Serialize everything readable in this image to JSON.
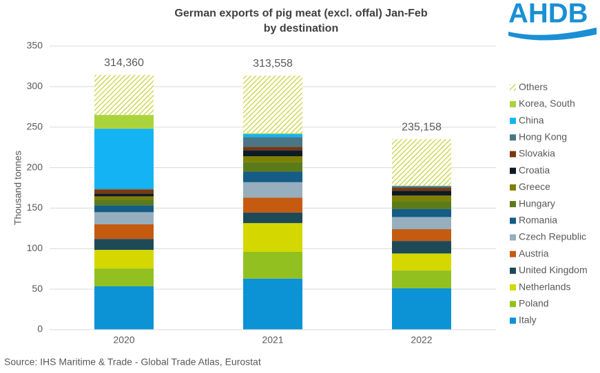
{
  "chart_data": {
    "type": "stacked_bar",
    "title": [
      "German exports of pig meat (excl. offal) Jan-Feb",
      "by destination"
    ],
    "logo": "AHDB",
    "source": "Source: IHS Maritime & Trade - Global Trade Atlas, Eurostat",
    "y_label": "Thousand tonnes",
    "categories": [
      "2020",
      "2021",
      "2022"
    ],
    "ylim": [
      0,
      350
    ],
    "yticks": [
      0,
      50,
      100,
      150,
      200,
      250,
      300,
      350
    ],
    "grid": true,
    "legend": "right",
    "totals": {
      "values": [
        314.36,
        313.558,
        235.158
      ],
      "value_labels": [
        "314,360",
        "313,558",
        "235,158"
      ]
    },
    "series": [
      {
        "name": "Italy",
        "color": "#0b93d6",
        "values": [
          53.5,
          63,
          51
        ]
      },
      {
        "name": "Poland",
        "color": "#93c021",
        "values": [
          22,
          33,
          22
        ]
      },
      {
        "name": "Netherlands",
        "color": "#d4d800",
        "values": [
          23,
          35.5,
          21
        ]
      },
      {
        "name": "United Kingdom",
        "color": "#1e4a58",
        "values": [
          13.5,
          13,
          15.5
        ]
      },
      {
        "name": "Austria",
        "color": "#c55a11",
        "values": [
          18,
          18.5,
          14.5
        ]
      },
      {
        "name": "Czech Republic",
        "color": "#96aebd",
        "values": [
          15,
          19,
          15
        ]
      },
      {
        "name": "Romania",
        "color": "#155c86",
        "values": [
          8.5,
          13,
          10
        ]
      },
      {
        "name": "Hungary",
        "color": "#5b7b1a",
        "values": [
          7,
          12,
          9.5
        ]
      },
      {
        "name": "Greece",
        "color": "#7f7f00",
        "values": [
          4,
          7,
          7
        ]
      },
      {
        "name": "Croatia",
        "color": "#0e1b25",
        "values": [
          3.5,
          7.5,
          6
        ]
      },
      {
        "name": "Slovakia",
        "color": "#7a3810",
        "values": [
          5,
          4,
          4
        ]
      },
      {
        "name": "Hong Kong",
        "color": "#4a7686",
        "values": [
          1,
          12,
          1.5
        ]
      },
      {
        "name": "China",
        "color": "#14b4f4",
        "values": [
          74,
          4,
          0.5
        ]
      },
      {
        "name": "Korea, South",
        "color": "#abd43c",
        "values": [
          17,
          1,
          0.3
        ]
      },
      {
        "name": "Others",
        "color": "#c4cf2a",
        "hatch": true,
        "values": [
          49.4,
          71.1,
          57.4
        ]
      }
    ]
  }
}
